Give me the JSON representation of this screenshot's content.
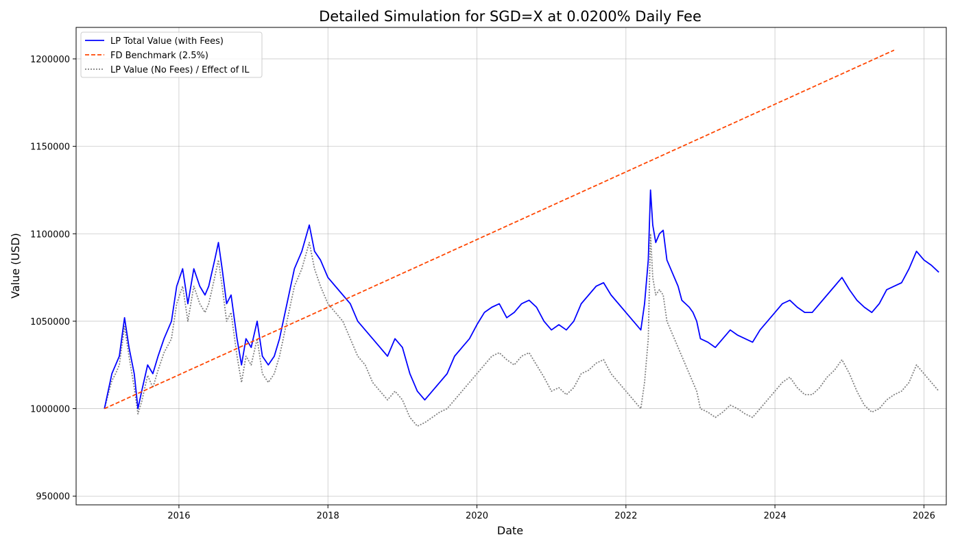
{
  "chart_data": {
    "type": "line",
    "title": "Detailed Simulation for SGD=X at 0.0200% Daily Fee",
    "xlabel": "Date",
    "ylabel": "Value (USD)",
    "xlim": [
      2014.62,
      2026.3
    ],
    "ylim": [
      945000,
      1218000
    ],
    "x_ticks": [
      2016,
      2018,
      2020,
      2022,
      2024,
      2026
    ],
    "x_tick_labels": [
      "2016",
      "2018",
      "2020",
      "2022",
      "2024",
      "2026"
    ],
    "y_ticks": [
      950000,
      1000000,
      1050000,
      1100000,
      1150000,
      1200000
    ],
    "y_tick_labels": [
      "950000",
      "1000000",
      "1050000",
      "1100000",
      "1150000",
      "1200000"
    ],
    "grid": true,
    "legend_position": "top-left",
    "series": [
      {
        "name": "LP Total Value (with Fees)",
        "color": "#0000ff",
        "style": "solid",
        "points": [
          [
            2015.0,
            1000000
          ],
          [
            2015.05,
            1010000
          ],
          [
            2015.1,
            1020000
          ],
          [
            2015.15,
            1025000
          ],
          [
            2015.2,
            1030000
          ],
          [
            2015.27,
            1052000
          ],
          [
            2015.33,
            1035000
          ],
          [
            2015.4,
            1020000
          ],
          [
            2015.45,
            1000000
          ],
          [
            2015.5,
            1010000
          ],
          [
            2015.58,
            1025000
          ],
          [
            2015.65,
            1020000
          ],
          [
            2015.72,
            1030000
          ],
          [
            2015.8,
            1040000
          ],
          [
            2015.9,
            1050000
          ],
          [
            2015.97,
            1070000
          ],
          [
            2016.05,
            1080000
          ],
          [
            2016.12,
            1060000
          ],
          [
            2016.2,
            1080000
          ],
          [
            2016.28,
            1070000
          ],
          [
            2016.35,
            1065000
          ],
          [
            2016.4,
            1070000
          ],
          [
            2016.48,
            1085000
          ],
          [
            2016.53,
            1095000
          ],
          [
            2016.58,
            1080000
          ],
          [
            2016.64,
            1060000
          ],
          [
            2016.7,
            1065000
          ],
          [
            2016.78,
            1040000
          ],
          [
            2016.84,
            1025000
          ],
          [
            2016.9,
            1040000
          ],
          [
            2016.97,
            1035000
          ],
          [
            2017.05,
            1050000
          ],
          [
            2017.12,
            1030000
          ],
          [
            2017.2,
            1025000
          ],
          [
            2017.28,
            1030000
          ],
          [
            2017.35,
            1040000
          ],
          [
            2017.45,
            1060000
          ],
          [
            2017.55,
            1080000
          ],
          [
            2017.65,
            1090000
          ],
          [
            2017.75,
            1105000
          ],
          [
            2017.82,
            1090000
          ],
          [
            2017.9,
            1085000
          ],
          [
            2018.0,
            1075000
          ],
          [
            2018.1,
            1070000
          ],
          [
            2018.2,
            1065000
          ],
          [
            2018.3,
            1060000
          ],
          [
            2018.4,
            1050000
          ],
          [
            2018.5,
            1045000
          ],
          [
            2018.6,
            1040000
          ],
          [
            2018.7,
            1035000
          ],
          [
            2018.8,
            1030000
          ],
          [
            2018.9,
            1040000
          ],
          [
            2019.0,
            1035000
          ],
          [
            2019.1,
            1020000
          ],
          [
            2019.2,
            1010000
          ],
          [
            2019.3,
            1005000
          ],
          [
            2019.4,
            1010000
          ],
          [
            2019.5,
            1015000
          ],
          [
            2019.6,
            1020000
          ],
          [
            2019.7,
            1030000
          ],
          [
            2019.8,
            1035000
          ],
          [
            2019.9,
            1040000
          ],
          [
            2020.0,
            1048000
          ],
          [
            2020.1,
            1055000
          ],
          [
            2020.2,
            1058000
          ],
          [
            2020.3,
            1060000
          ],
          [
            2020.4,
            1052000
          ],
          [
            2020.5,
            1055000
          ],
          [
            2020.6,
            1060000
          ],
          [
            2020.7,
            1062000
          ],
          [
            2020.8,
            1058000
          ],
          [
            2020.9,
            1050000
          ],
          [
            2021.0,
            1045000
          ],
          [
            2021.1,
            1048000
          ],
          [
            2021.2,
            1045000
          ],
          [
            2021.3,
            1050000
          ],
          [
            2021.4,
            1060000
          ],
          [
            2021.5,
            1065000
          ],
          [
            2021.6,
            1070000
          ],
          [
            2021.7,
            1072000
          ],
          [
            2021.8,
            1065000
          ],
          [
            2021.9,
            1060000
          ],
          [
            2022.0,
            1055000
          ],
          [
            2022.1,
            1050000
          ],
          [
            2022.2,
            1045000
          ],
          [
            2022.25,
            1060000
          ],
          [
            2022.3,
            1085000
          ],
          [
            2022.33,
            1125000
          ],
          [
            2022.36,
            1105000
          ],
          [
            2022.4,
            1095000
          ],
          [
            2022.45,
            1100000
          ],
          [
            2022.5,
            1102000
          ],
          [
            2022.55,
            1085000
          ],
          [
            2022.6,
            1080000
          ],
          [
            2022.65,
            1075000
          ],
          [
            2022.7,
            1070000
          ],
          [
            2022.75,
            1062000
          ],
          [
            2022.8,
            1060000
          ],
          [
            2022.85,
            1058000
          ],
          [
            2022.9,
            1055000
          ],
          [
            2022.95,
            1050000
          ],
          [
            2023.0,
            1040000
          ],
          [
            2023.1,
            1038000
          ],
          [
            2023.2,
            1035000
          ],
          [
            2023.3,
            1040000
          ],
          [
            2023.4,
            1045000
          ],
          [
            2023.5,
            1042000
          ],
          [
            2023.6,
            1040000
          ],
          [
            2023.7,
            1038000
          ],
          [
            2023.8,
            1045000
          ],
          [
            2023.9,
            1050000
          ],
          [
            2024.0,
            1055000
          ],
          [
            2024.1,
            1060000
          ],
          [
            2024.2,
            1062000
          ],
          [
            2024.3,
            1058000
          ],
          [
            2024.4,
            1055000
          ],
          [
            2024.5,
            1055000
          ],
          [
            2024.6,
            1060000
          ],
          [
            2024.7,
            1065000
          ],
          [
            2024.8,
            1070000
          ],
          [
            2024.9,
            1075000
          ],
          [
            2025.0,
            1068000
          ],
          [
            2025.1,
            1062000
          ],
          [
            2025.2,
            1058000
          ],
          [
            2025.3,
            1055000
          ],
          [
            2025.4,
            1060000
          ],
          [
            2025.5,
            1068000
          ],
          [
            2025.6,
            1070000
          ],
          [
            2025.7,
            1072000
          ],
          [
            2025.8,
            1080000
          ],
          [
            2025.9,
            1090000
          ],
          [
            2026.0,
            1085000
          ],
          [
            2026.1,
            1082000
          ],
          [
            2026.2,
            1078000
          ]
        ]
      },
      {
        "name": "FD Benchmark (2.5%)",
        "color": "#ff4500",
        "style": "dashed",
        "points": [
          [
            2015.0,
            1000000
          ],
          [
            2025.6,
            1205000
          ]
        ]
      },
      {
        "name": "LP Value (No Fees) / Effect of IL",
        "color": "#808080",
        "style": "dotted",
        "points": [
          [
            2015.0,
            1000000
          ],
          [
            2015.05,
            1008000
          ],
          [
            2015.1,
            1016000
          ],
          [
            2015.15,
            1020000
          ],
          [
            2015.2,
            1025000
          ],
          [
            2015.27,
            1047000
          ],
          [
            2015.33,
            1030000
          ],
          [
            2015.4,
            1012000
          ],
          [
            2015.45,
            997000
          ],
          [
            2015.5,
            1004000
          ],
          [
            2015.58,
            1019000
          ],
          [
            2015.65,
            1012000
          ],
          [
            2015.72,
            1022000
          ],
          [
            2015.8,
            1032000
          ],
          [
            2015.9,
            1040000
          ],
          [
            2015.97,
            1060000
          ],
          [
            2016.05,
            1070000
          ],
          [
            2016.12,
            1050000
          ],
          [
            2016.2,
            1070000
          ],
          [
            2016.28,
            1060000
          ],
          [
            2016.35,
            1055000
          ],
          [
            2016.4,
            1060000
          ],
          [
            2016.48,
            1075000
          ],
          [
            2016.53,
            1085000
          ],
          [
            2016.58,
            1070000
          ],
          [
            2016.64,
            1050000
          ],
          [
            2016.7,
            1055000
          ],
          [
            2016.78,
            1030000
          ],
          [
            2016.84,
            1015000
          ],
          [
            2016.9,
            1030000
          ],
          [
            2016.97,
            1025000
          ],
          [
            2017.05,
            1040000
          ],
          [
            2017.12,
            1020000
          ],
          [
            2017.2,
            1015000
          ],
          [
            2017.28,
            1020000
          ],
          [
            2017.35,
            1030000
          ],
          [
            2017.45,
            1050000
          ],
          [
            2017.55,
            1070000
          ],
          [
            2017.65,
            1080000
          ],
          [
            2017.75,
            1095000
          ],
          [
            2017.82,
            1080000
          ],
          [
            2017.9,
            1070000
          ],
          [
            2018.0,
            1060000
          ],
          [
            2018.1,
            1055000
          ],
          [
            2018.2,
            1050000
          ],
          [
            2018.3,
            1040000
          ],
          [
            2018.4,
            1030000
          ],
          [
            2018.5,
            1025000
          ],
          [
            2018.6,
            1015000
          ],
          [
            2018.7,
            1010000
          ],
          [
            2018.8,
            1005000
          ],
          [
            2018.9,
            1010000
          ],
          [
            2019.0,
            1005000
          ],
          [
            2019.1,
            995000
          ],
          [
            2019.2,
            990000
          ],
          [
            2019.3,
            992000
          ],
          [
            2019.4,
            995000
          ],
          [
            2019.5,
            998000
          ],
          [
            2019.6,
            1000000
          ],
          [
            2019.7,
            1005000
          ],
          [
            2019.8,
            1010000
          ],
          [
            2019.9,
            1015000
          ],
          [
            2020.0,
            1020000
          ],
          [
            2020.1,
            1025000
          ],
          [
            2020.2,
            1030000
          ],
          [
            2020.3,
            1032000
          ],
          [
            2020.4,
            1028000
          ],
          [
            2020.5,
            1025000
          ],
          [
            2020.6,
            1030000
          ],
          [
            2020.7,
            1032000
          ],
          [
            2020.8,
            1025000
          ],
          [
            2020.9,
            1018000
          ],
          [
            2021.0,
            1010000
          ],
          [
            2021.1,
            1012000
          ],
          [
            2021.2,
            1008000
          ],
          [
            2021.3,
            1012000
          ],
          [
            2021.4,
            1020000
          ],
          [
            2021.5,
            1022000
          ],
          [
            2021.6,
            1026000
          ],
          [
            2021.7,
            1028000
          ],
          [
            2021.8,
            1020000
          ],
          [
            2021.9,
            1015000
          ],
          [
            2022.0,
            1010000
          ],
          [
            2022.1,
            1005000
          ],
          [
            2022.2,
            1000000
          ],
          [
            2022.25,
            1015000
          ],
          [
            2022.3,
            1040000
          ],
          [
            2022.33,
            1100000
          ],
          [
            2022.36,
            1075000
          ],
          [
            2022.4,
            1065000
          ],
          [
            2022.45,
            1068000
          ],
          [
            2022.5,
            1065000
          ],
          [
            2022.55,
            1050000
          ],
          [
            2022.6,
            1045000
          ],
          [
            2022.65,
            1040000
          ],
          [
            2022.7,
            1035000
          ],
          [
            2022.75,
            1030000
          ],
          [
            2022.8,
            1025000
          ],
          [
            2022.85,
            1020000
          ],
          [
            2022.9,
            1015000
          ],
          [
            2022.95,
            1010000
          ],
          [
            2023.0,
            1000000
          ],
          [
            2023.1,
            998000
          ],
          [
            2023.2,
            995000
          ],
          [
            2023.3,
            998000
          ],
          [
            2023.4,
            1002000
          ],
          [
            2023.5,
            1000000
          ],
          [
            2023.6,
            997000
          ],
          [
            2023.7,
            995000
          ],
          [
            2023.8,
            1000000
          ],
          [
            2023.9,
            1005000
          ],
          [
            2024.0,
            1010000
          ],
          [
            2024.1,
            1015000
          ],
          [
            2024.2,
            1018000
          ],
          [
            2024.3,
            1012000
          ],
          [
            2024.4,
            1008000
          ],
          [
            2024.5,
            1008000
          ],
          [
            2024.6,
            1012000
          ],
          [
            2024.7,
            1018000
          ],
          [
            2024.8,
            1022000
          ],
          [
            2024.9,
            1028000
          ],
          [
            2025.0,
            1020000
          ],
          [
            2025.1,
            1010000
          ],
          [
            2025.2,
            1002000
          ],
          [
            2025.3,
            998000
          ],
          [
            2025.4,
            1000000
          ],
          [
            2025.5,
            1005000
          ],
          [
            2025.6,
            1008000
          ],
          [
            2025.7,
            1010000
          ],
          [
            2025.8,
            1015000
          ],
          [
            2025.9,
            1025000
          ],
          [
            2026.0,
            1020000
          ],
          [
            2026.1,
            1015000
          ],
          [
            2026.2,
            1010000
          ]
        ]
      }
    ]
  }
}
